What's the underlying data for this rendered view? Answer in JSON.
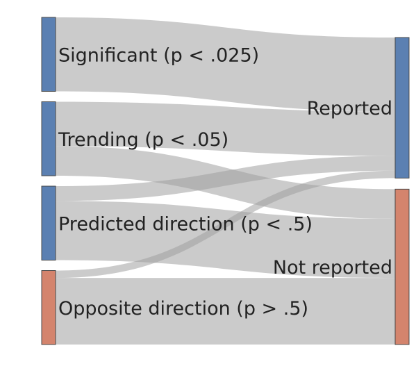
{
  "chart_data": {
    "type": "sankey",
    "colors": {
      "reported": "#5b80b2",
      "not_reported": "#d4846d",
      "link": "#a0a0a0"
    },
    "nodes": [
      {
        "id": "significant",
        "label": "Significant (p < .025)",
        "side": "source",
        "color": "#5b80b2"
      },
      {
        "id": "trending",
        "label": "Trending (p < .05)",
        "side": "source",
        "color": "#5b80b2"
      },
      {
        "id": "predicted",
        "label": "Predicted direction (p < .5)",
        "side": "source",
        "color": "#5b80b2"
      },
      {
        "id": "opposite",
        "label": "Opposite direction (p > .5)",
        "side": "source",
        "color": "#d4846d"
      },
      {
        "id": "reported",
        "label": "Reported",
        "side": "target",
        "color": "#5b80b2"
      },
      {
        "id": "not_reported",
        "label": "Not reported",
        "side": "target",
        "color": "#d4846d"
      }
    ],
    "links": [
      {
        "source": "significant",
        "target": "reported",
        "value": 100
      },
      {
        "source": "trending",
        "target": "reported",
        "value": 60
      },
      {
        "source": "trending",
        "target": "not_reported",
        "value": 40
      },
      {
        "source": "predicted",
        "target": "reported",
        "value": 20
      },
      {
        "source": "predicted",
        "target": "not_reported",
        "value": 80
      },
      {
        "source": "opposite",
        "target": "reported",
        "value": 10
      },
      {
        "source": "opposite",
        "target": "not_reported",
        "value": 90
      }
    ]
  }
}
